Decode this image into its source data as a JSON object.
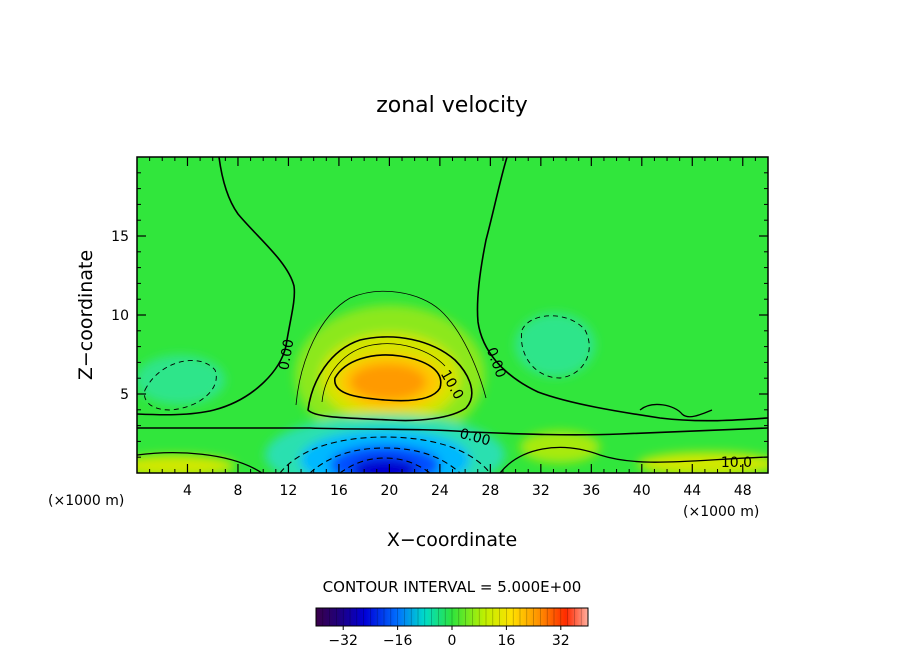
{
  "chart_data": {
    "type": "heatmap",
    "title": "zonal velocity",
    "xlabel": "X−coordinate",
    "ylabel": "Z−coordinate",
    "x_unit_left": "(×1000 m)",
    "x_unit_right": "(×1000 m)",
    "xlim": [
      0,
      50
    ],
    "ylim": [
      0,
      20
    ],
    "x_ticks": [
      4,
      8,
      12,
      16,
      20,
      24,
      28,
      32,
      36,
      40,
      44,
      48
    ],
    "y_ticks": [
      5,
      10,
      15
    ],
    "contour_interval_text": "CONTOUR INTERVAL = 5.000E+00",
    "colorbar": {
      "min": -40,
      "max": 40,
      "ticks": [
        -32,
        -16,
        0,
        16,
        32
      ]
    },
    "contour_labels": [
      {
        "text": "0.00",
        "x": 11.8,
        "y": 7.5,
        "angle": -80
      },
      {
        "text": "0.00",
        "x": 28.5,
        "y": 7.0,
        "angle": 70
      },
      {
        "text": "10.0",
        "x": 25.0,
        "y": 5.6,
        "angle": 60
      },
      {
        "text": "0.00",
        "x": 26.8,
        "y": 2.3,
        "angle": 15
      },
      {
        "text": "10.0",
        "x": 47.5,
        "y": 0.7,
        "angle": 0
      }
    ],
    "features": [
      {
        "label": "jet maximum",
        "x": 20,
        "y": 5.8,
        "value": 22
      },
      {
        "label": "low-level minimum",
        "x": 20,
        "y": 0.6,
        "value": -38
      },
      {
        "label": "near-surface maximum left",
        "x": 2,
        "y": 0.3,
        "value": 12
      },
      {
        "label": "near-surface maximum right",
        "x": 46,
        "y": 0.4,
        "value": 11
      }
    ]
  }
}
